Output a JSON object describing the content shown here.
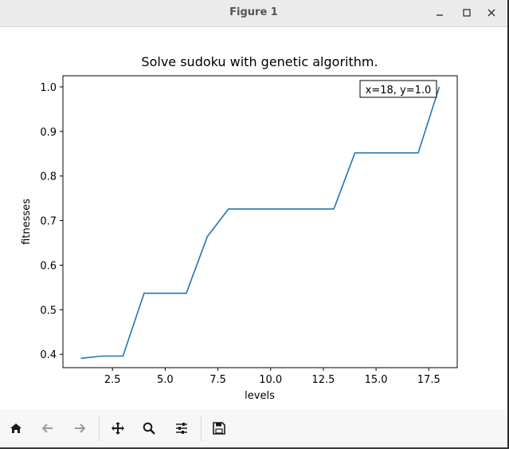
{
  "window": {
    "title": "Figure 1"
  },
  "toolbar": {
    "buttons": [
      {
        "name": "home",
        "icon": "home-icon"
      },
      {
        "name": "back",
        "icon": "arrow-left-icon"
      },
      {
        "name": "forward",
        "icon": "arrow-right-icon"
      },
      {
        "name": "pan",
        "icon": "move-icon"
      },
      {
        "name": "zoom",
        "icon": "magnifier-icon"
      },
      {
        "name": "configure",
        "icon": "sliders-icon"
      },
      {
        "name": "save",
        "icon": "floppy-icon"
      }
    ]
  },
  "chart_data": {
    "type": "line",
    "title": "Solve sudoku with genetic algorithm.",
    "xlabel": "levels",
    "ylabel": "fitnesses",
    "xlim": [
      0.15,
      18.85
    ],
    "ylim": [
      0.37,
      1.025
    ],
    "xticks": [
      2.5,
      5.0,
      7.5,
      10.0,
      12.5,
      15.0,
      17.5
    ],
    "xtick_labels": [
      "2.5",
      "5.0",
      "7.5",
      "10.0",
      "12.5",
      "15.0",
      "17.5"
    ],
    "yticks": [
      0.4,
      0.5,
      0.6,
      0.7,
      0.8,
      0.9,
      1.0
    ],
    "ytick_labels": [
      "0.4",
      "0.5",
      "0.6",
      "0.7",
      "0.8",
      "0.9",
      "1.0"
    ],
    "grid": false,
    "line_color": "#1f77b4",
    "series": [
      {
        "x": [
          1,
          2,
          3,
          4,
          5,
          6,
          7,
          8,
          9,
          10,
          11,
          12,
          13,
          14,
          15,
          16,
          17,
          18
        ],
        "y": [
          0.391,
          0.396,
          0.396,
          0.537,
          0.537,
          0.537,
          0.664,
          0.726,
          0.726,
          0.726,
          0.726,
          0.726,
          0.726,
          0.852,
          0.852,
          0.852,
          0.852,
          1.0
        ]
      }
    ],
    "annotation": {
      "text": "x=18, y=1.0",
      "x": 18,
      "y": 1.0
    }
  }
}
